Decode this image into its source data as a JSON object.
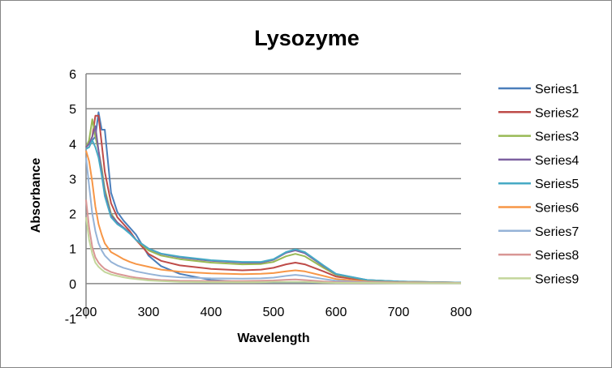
{
  "chart_data": {
    "type": "line",
    "title": "Lysozyme",
    "xlabel": "Wavelength",
    "ylabel": "Absorbance",
    "xlim": [
      200,
      800
    ],
    "ylim": [
      -1,
      6
    ],
    "xticks": [
      200,
      300,
      400,
      500,
      600,
      700,
      800
    ],
    "yticks": [
      -1,
      0,
      1,
      2,
      3,
      4,
      5,
      6
    ],
    "grid": "horizontal major",
    "legend": "right",
    "x": [
      200,
      205,
      210,
      215,
      220,
      225,
      230,
      240,
      250,
      260,
      270,
      280,
      300,
      320,
      350,
      400,
      450,
      480,
      500,
      520,
      535,
      550,
      580,
      600,
      650,
      700,
      800
    ],
    "series": [
      {
        "name": "Series1",
        "color": "#4a7ebb",
        "values": [
          3.9,
          4.0,
          4.1,
          4.2,
          4.9,
          4.4,
          4.4,
          2.6,
          2.05,
          1.8,
          1.6,
          1.4,
          0.8,
          0.5,
          0.28,
          0.1,
          0.05,
          0.04,
          0.04,
          0.04,
          0.04,
          0.04,
          0.03,
          0.03,
          0.03,
          0.02,
          0.02
        ]
      },
      {
        "name": "Series2",
        "color": "#be4b48",
        "values": [
          3.9,
          4.0,
          4.2,
          4.8,
          4.8,
          4.0,
          3.2,
          2.3,
          1.9,
          1.7,
          1.5,
          1.25,
          0.85,
          0.65,
          0.52,
          0.42,
          0.38,
          0.4,
          0.45,
          0.55,
          0.6,
          0.55,
          0.35,
          0.2,
          0.08,
          0.05,
          0.03
        ]
      },
      {
        "name": "Series3",
        "color": "#98b954",
        "values": [
          3.9,
          4.1,
          4.7,
          4.2,
          3.8,
          3.3,
          2.7,
          2.0,
          1.75,
          1.6,
          1.45,
          1.25,
          0.95,
          0.8,
          0.7,
          0.6,
          0.55,
          0.56,
          0.62,
          0.78,
          0.85,
          0.78,
          0.45,
          0.25,
          0.1,
          0.06,
          0.03
        ]
      },
      {
        "name": "Series4",
        "color": "#7d60a0",
        "values": [
          3.9,
          4.0,
          4.2,
          4.5,
          3.8,
          3.2,
          2.6,
          1.95,
          1.75,
          1.6,
          1.45,
          1.25,
          1.0,
          0.85,
          0.75,
          0.65,
          0.6,
          0.6,
          0.68,
          0.88,
          0.95,
          0.87,
          0.5,
          0.27,
          0.1,
          0.06,
          0.03
        ]
      },
      {
        "name": "Series5",
        "color": "#46aac5",
        "values": [
          3.85,
          3.9,
          4.1,
          3.9,
          3.6,
          3.1,
          2.5,
          1.9,
          1.7,
          1.58,
          1.43,
          1.25,
          1.0,
          0.86,
          0.77,
          0.67,
          0.62,
          0.62,
          0.7,
          0.9,
          0.98,
          0.9,
          0.52,
          0.28,
          0.1,
          0.06,
          0.03
        ]
      },
      {
        "name": "Series6",
        "color": "#f79646",
        "values": [
          3.8,
          3.5,
          2.9,
          2.2,
          1.7,
          1.4,
          1.15,
          0.9,
          0.8,
          0.7,
          0.62,
          0.56,
          0.48,
          0.4,
          0.34,
          0.29,
          0.27,
          0.28,
          0.3,
          0.35,
          0.38,
          0.35,
          0.22,
          0.13,
          0.06,
          0.04,
          0.02
        ]
      },
      {
        "name": "Series7",
        "color": "#95b3d7",
        "values": [
          3.6,
          2.8,
          2.0,
          1.5,
          1.15,
          0.95,
          0.8,
          0.62,
          0.52,
          0.45,
          0.4,
          0.35,
          0.28,
          0.22,
          0.18,
          0.15,
          0.14,
          0.15,
          0.17,
          0.22,
          0.25,
          0.22,
          0.13,
          0.08,
          0.04,
          0.03,
          0.02
        ]
      },
      {
        "name": "Series8",
        "color": "#d99694",
        "values": [
          2.4,
          1.6,
          1.05,
          0.75,
          0.6,
          0.5,
          0.42,
          0.33,
          0.28,
          0.24,
          0.2,
          0.17,
          0.13,
          0.1,
          0.08,
          0.07,
          0.07,
          0.08,
          0.09,
          0.11,
          0.12,
          0.1,
          0.06,
          0.04,
          0.03,
          0.02,
          0.02
        ]
      },
      {
        "name": "Series9",
        "color": "#c3d69b",
        "values": [
          1.9,
          1.25,
          0.85,
          0.6,
          0.48,
          0.4,
          0.33,
          0.26,
          0.22,
          0.18,
          0.15,
          0.13,
          0.09,
          0.07,
          0.05,
          0.04,
          0.04,
          0.04,
          0.05,
          0.05,
          0.05,
          0.05,
          0.03,
          0.02,
          0.02,
          0.01,
          0.01
        ]
      }
    ]
  }
}
